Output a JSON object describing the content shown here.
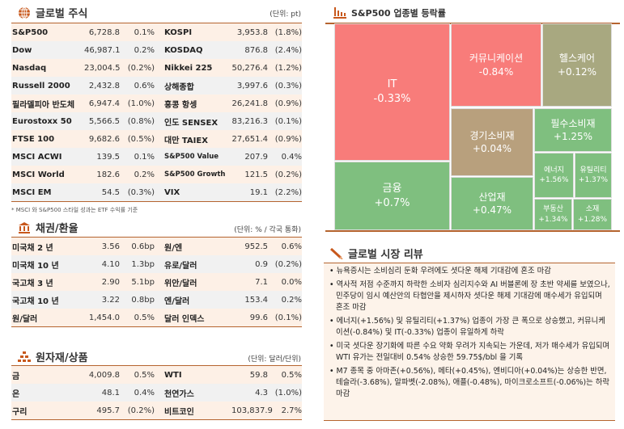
{
  "stocks": {
    "title": "글로벌 주식",
    "unit": "(단위: pt)",
    "footnote": "* MSCI 와 S&P500 스타일 성과는 ETF 수익률 기준",
    "rows": [
      [
        "S&P500",
        "6,728.8",
        "0.1%",
        "KOSPI",
        "3,953.8",
        "(1.8%)"
      ],
      [
        "Dow",
        "46,987.1",
        "0.2%",
        "KOSDAQ",
        "876.8",
        "(2.4%)"
      ],
      [
        "Nasdaq",
        "23,004.5",
        "(0.2%)",
        "Nikkei 225",
        "50,276.4",
        "(1.2%)"
      ],
      [
        "Russell 2000",
        "2,432.8",
        "0.6%",
        "상해종합",
        "3,997.6",
        "(0.3%)"
      ],
      [
        "필라델피아 반도체",
        "6,947.4",
        "(1.0%)",
        "홍콩 항셍",
        "26,241.8",
        "(0.9%)"
      ],
      [
        "Eurostoxx 50",
        "5,566.5",
        "(0.8%)",
        "인도 SENSEX",
        "83,216.3",
        "(0.1%)"
      ],
      [
        "FTSE 100",
        "9,682.6",
        "(0.5%)",
        "대만 TAIEX",
        "27,651.4",
        "(0.9%)"
      ],
      [
        "MSCI ACWI",
        "139.5",
        "0.1%",
        "S&P500 Value",
        "207.9",
        "0.4%"
      ],
      [
        "MSCI World",
        "182.6",
        "0.2%",
        "S&P500 Growth",
        "121.5",
        "(0.2%)"
      ],
      [
        "MSCI EM",
        "54.5",
        "(0.3%)",
        "VIX",
        "19.1",
        "(2.2%)"
      ]
    ]
  },
  "bonds": {
    "title": "채권/환율",
    "unit": "(단위: % / 각국 통화)",
    "rows": [
      [
        "미국채 2 년",
        "3.56",
        "0.6bp",
        "원/엔",
        "952.5",
        "0.6%"
      ],
      [
        "미국채 10 년",
        "4.10",
        "1.3bp",
        "유로/달러",
        "0.9",
        "(0.2%)"
      ],
      [
        "국고채 3 년",
        "2.90",
        "5.1bp",
        "위안/달러",
        "7.1",
        "0.0%"
      ],
      [
        "국고채 10 년",
        "3.22",
        "0.8bp",
        "엔/달러",
        "153.4",
        "0.2%"
      ],
      [
        "원/달러",
        "1,454.0",
        "0.5%",
        "달러 인덱스",
        "99.6",
        "(0.1%)"
      ]
    ]
  },
  "commodities": {
    "title": "원자재/상품",
    "unit": "(단위: 달러/단위)",
    "rows": [
      [
        "금",
        "4,009.8",
        "0.5%",
        "WTI",
        "59.8",
        "0.5%"
      ],
      [
        "은",
        "48.1",
        "0.4%",
        "천연가스",
        "4.3",
        "(1.0%)"
      ],
      [
        "구리",
        "495.7",
        "(0.2%)",
        "비트코인",
        "103,837.9",
        "2.7%"
      ]
    ]
  },
  "treemap": {
    "title": "S&P500 업종별 등락률",
    "colors": {
      "down": "#f87c7a",
      "up": "#7fbf7f",
      "flat_olive": "#a8a880",
      "flat_tan": "#b8a07d"
    },
    "sectors": [
      {
        "name": "IT",
        "change": "-0.33%"
      },
      {
        "name": "금융",
        "change": "+0.7%"
      },
      {
        "name": "커뮤니케이션",
        "change": "-0.84%"
      },
      {
        "name": "헬스케어",
        "change": "+0.12%"
      },
      {
        "name": "경기소비재",
        "change": "+0.04%"
      },
      {
        "name": "산업재",
        "change": "+0.47%"
      },
      {
        "name": "필수소비재",
        "change": "+1.25%"
      },
      {
        "name": "에너지",
        "change": "+1.56%"
      },
      {
        "name": "유틸리티",
        "change": "+1.37%"
      },
      {
        "name": "부동산",
        "change": "+1.34%"
      },
      {
        "name": "소재",
        "change": "+1.28%"
      }
    ]
  },
  "review": {
    "title": "글로벌 시장 리뷰",
    "items": [
      "뉴욕증시는 소비심리 둔화 우려에도 셧다운 해제 기대감에 혼조 마감",
      "역사적 저점 수준까지 하락한 소비자 심리지수와 AI 버블론에 장 초반 약세를 보였으나, 민주당이 임시 예산안의 타협안을 제시하자 셧다운 해제 기대감에 매수세가 유입되며 혼조 마감",
      "에너지(+1.56%) 및 유틸리티(+1.37%) 업종이 가장 큰 폭으로 상승했고, 커뮤니케이션(-0.84%) 및 IT(-0.33%) 업종이 유일하게 하락",
      "미국 셧다운 장기화에 따른 수요 약화 우려가 지속되는 가운데, 저가 매수세가 유입되며 WTI 유가는 전일대비 0.54% 상승한 59.75$/bbl 을 기록",
      "M7 종목 중 아마존(+0.56%), 메타(+0.45%), 엔비디아(+0.04%)는 상승한 반면, 테슬라(-3.68%), 알파벳(-2.08%), 애플(-0.48%), 마이크로소프트(-0.06%)는 하락 마감"
    ]
  }
}
